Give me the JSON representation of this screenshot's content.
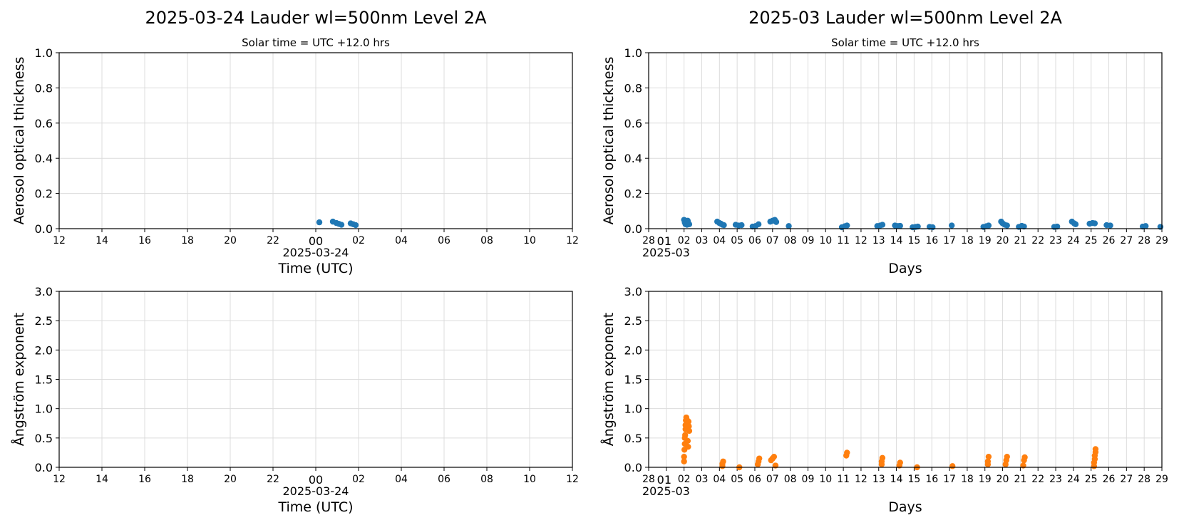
{
  "chart_data": [
    {
      "id": "daily-aod",
      "type": "scatter",
      "title": "2025-03-24  Lauder  wl=500nm  Level 2A",
      "subtitle": "Solar time = UTC +12.0 hrs",
      "xlabel": "Time (UTC)",
      "ylabel": "Aerosol optical thickness",
      "x_tick_labels": [
        "12",
        "14",
        "16",
        "18",
        "20",
        "22",
        "00",
        "02",
        "04",
        "06",
        "08",
        "10",
        "12"
      ],
      "x_date_label": "2025-03-24",
      "xlim": [
        "2025-03-23 12:00",
        "2025-03-24 12:00"
      ],
      "ylim": [
        0,
        1.0
      ],
      "y_ticks": [
        "0.0",
        "0.2",
        "0.4",
        "0.6",
        "0.8",
        "1.0"
      ],
      "grid": true,
      "color": "#1f77b4",
      "points": [
        [
          "2025-03-24 00:10",
          0.036
        ],
        [
          "2025-03-24 00:48",
          0.04
        ],
        [
          "2025-03-24 00:58",
          0.032
        ],
        [
          "2025-03-24 01:05",
          0.027
        ],
        [
          "2025-03-24 01:12",
          0.022
        ],
        [
          "2025-03-24 01:38",
          0.03
        ],
        [
          "2025-03-24 01:45",
          0.025
        ],
        [
          "2025-03-24 01:52",
          0.02
        ]
      ]
    },
    {
      "id": "monthly-aod",
      "type": "scatter",
      "title": "2025-03  Lauder  wl=500nm  Level 2A",
      "subtitle": "Solar time = UTC +12.0 hrs",
      "xlabel": "Days",
      "ylabel": "Aerosol optical thickness",
      "x_tick_labels": [
        "28",
        "01",
        "02",
        "03",
        "04",
        "05",
        "06",
        "07",
        "08",
        "09",
        "10",
        "11",
        "12",
        "13",
        "14",
        "15",
        "16",
        "17",
        "18",
        "19",
        "20",
        "21",
        "22",
        "23",
        "24",
        "25",
        "26",
        "27",
        "28",
        "29"
      ],
      "x_date_label": "2025-03",
      "xlim": [
        "2025-02-28",
        "2025-03-29"
      ],
      "ylim": [
        0,
        1.0
      ],
      "y_ticks": [
        "0.0",
        "0.2",
        "0.4",
        "0.6",
        "0.8",
        "1.0"
      ],
      "grid": true,
      "color": "#1f77b4",
      "points": [
        [
          "2025-03-02 00:00",
          0.05
        ],
        [
          "2025-03-02 01:00",
          0.035
        ],
        [
          "2025-03-02 02:00",
          0.025
        ],
        [
          "2025-03-02 03:00",
          0.03
        ],
        [
          "2025-03-02 04:00",
          0.022
        ],
        [
          "2025-03-02 05:00",
          0.045
        ],
        [
          "2025-03-02 06:00",
          0.03
        ],
        [
          "2025-03-02 07:00",
          0.025
        ],
        [
          "2025-03-03 21:00",
          0.04
        ],
        [
          "2025-03-04 00:00",
          0.032
        ],
        [
          "2025-03-04 02:00",
          0.028
        ],
        [
          "2025-03-04 04:00",
          0.022
        ],
        [
          "2025-03-04 06:00",
          0.02
        ],
        [
          "2025-03-04 22:00",
          0.022
        ],
        [
          "2025-03-05 02:00",
          0.018
        ],
        [
          "2025-03-05 06:00",
          0.02
        ],
        [
          "2025-03-05 21:00",
          0.012
        ],
        [
          "2025-03-06 01:00",
          0.015
        ],
        [
          "2025-03-06 05:00",
          0.025
        ],
        [
          "2025-03-06 21:00",
          0.04
        ],
        [
          "2025-03-07 00:00",
          0.045
        ],
        [
          "2025-03-07 03:00",
          0.05
        ],
        [
          "2025-03-07 05:00",
          0.038
        ],
        [
          "2025-03-07 22:00",
          0.015
        ],
        [
          "2025-03-10 22:00",
          0.008
        ],
        [
          "2025-03-11 02:00",
          0.014
        ],
        [
          "2025-03-11 05:00",
          0.018
        ],
        [
          "2025-03-12 22:00",
          0.015
        ],
        [
          "2025-03-13 02:00",
          0.018
        ],
        [
          "2025-03-13 05:00",
          0.022
        ],
        [
          "2025-03-13 22:00",
          0.018
        ],
        [
          "2025-03-14 02:00",
          0.015
        ],
        [
          "2025-03-14 05:00",
          0.016
        ],
        [
          "2025-03-14 22:00",
          0.008
        ],
        [
          "2025-03-15 02:00",
          0.01
        ],
        [
          "2025-03-15 05:00",
          0.012
        ],
        [
          "2025-03-15 21:00",
          0.01
        ],
        [
          "2025-03-16 01:00",
          0.008
        ],
        [
          "2025-03-17 03:00",
          0.018
        ],
        [
          "2025-03-18 22:00",
          0.01
        ],
        [
          "2025-03-19 02:00",
          0.014
        ],
        [
          "2025-03-19 05:00",
          0.018
        ],
        [
          "2025-03-19 22:00",
          0.04
        ],
        [
          "2025-03-20 00:00",
          0.03
        ],
        [
          "2025-03-20 03:00",
          0.022
        ],
        [
          "2025-03-20 06:00",
          0.018
        ],
        [
          "2025-03-20 22:00",
          0.01
        ],
        [
          "2025-03-21 02:00",
          0.016
        ],
        [
          "2025-03-21 05:00",
          0.012
        ],
        [
          "2025-03-22 22:00",
          0.01
        ],
        [
          "2025-03-23 02:00",
          0.012
        ],
        [
          "2025-03-23 22:00",
          0.04
        ],
        [
          "2025-03-24 01:00",
          0.03
        ],
        [
          "2025-03-24 03:00",
          0.025
        ],
        [
          "2025-03-24 22:00",
          0.028
        ],
        [
          "2025-03-25 02:00",
          0.032
        ],
        [
          "2025-03-25 05:00",
          0.03
        ],
        [
          "2025-03-25 21:00",
          0.02
        ],
        [
          "2025-03-26 02:00",
          0.018
        ],
        [
          "2025-03-27 22:00",
          0.012
        ],
        [
          "2025-03-28 02:00",
          0.015
        ],
        [
          "2025-03-28 22:00",
          0.01
        ]
      ]
    },
    {
      "id": "daily-angstrom",
      "type": "scatter",
      "xlabel": "Time (UTC)",
      "ylabel": "Ångström exponent",
      "x_tick_labels": [
        "12",
        "14",
        "16",
        "18",
        "20",
        "22",
        "00",
        "02",
        "04",
        "06",
        "08",
        "10",
        "12"
      ],
      "x_date_label": "2025-03-24",
      "xlim": [
        "2025-03-23 12:00",
        "2025-03-24 12:00"
      ],
      "ylim": [
        0,
        3.0
      ],
      "y_ticks": [
        "0.0",
        "0.5",
        "1.0",
        "1.5",
        "2.0",
        "2.5",
        "3.0"
      ],
      "grid": true,
      "color": "#ff7f0e",
      "points": []
    },
    {
      "id": "monthly-angstrom",
      "type": "scatter",
      "xlabel": "Days",
      "ylabel": "Ångström exponent",
      "x_tick_labels": [
        "28",
        "01",
        "02",
        "03",
        "04",
        "05",
        "06",
        "07",
        "08",
        "09",
        "10",
        "11",
        "12",
        "13",
        "14",
        "15",
        "16",
        "17",
        "18",
        "19",
        "20",
        "21",
        "22",
        "23",
        "24",
        "25",
        "26",
        "27",
        "28",
        "29"
      ],
      "x_date_label": "2025-03",
      "xlim": [
        "2025-02-28",
        "2025-03-29"
      ],
      "ylim": [
        0,
        3.0
      ],
      "y_ticks": [
        "0.0",
        "0.5",
        "1.0",
        "1.5",
        "2.0",
        "2.5",
        "3.0"
      ],
      "grid": true,
      "color": "#ff7f0e",
      "points": [
        [
          "2025-03-02 00:00",
          0.1
        ],
        [
          "2025-03-02 00:00",
          0.18
        ],
        [
          "2025-03-02 00:30",
          0.3
        ],
        [
          "2025-03-02 01:00",
          0.4
        ],
        [
          "2025-03-02 01:00",
          0.5
        ],
        [
          "2025-03-02 01:30",
          0.55
        ],
        [
          "2025-03-02 02:00",
          0.65
        ],
        [
          "2025-03-02 02:00",
          0.72
        ],
        [
          "2025-03-02 02:30",
          0.8
        ],
        [
          "2025-03-02 03:00",
          0.85
        ],
        [
          "2025-03-02 03:30",
          0.82
        ],
        [
          "2025-03-02 04:00",
          0.75
        ],
        [
          "2025-03-02 04:30",
          0.68
        ],
        [
          "2025-03-02 05:00",
          0.45
        ],
        [
          "2025-03-02 05:30",
          0.35
        ],
        [
          "2025-03-02 06:00",
          0.78
        ],
        [
          "2025-03-02 06:30",
          0.7
        ],
        [
          "2025-03-02 07:00",
          0.62
        ],
        [
          "2025-03-04 04:00",
          0.02
        ],
        [
          "2025-03-04 04:00",
          0.06
        ],
        [
          "2025-03-04 05:00",
          0.1
        ],
        [
          "2025-03-05 03:00",
          0.0
        ],
        [
          "2025-03-06 04:00",
          0.05
        ],
        [
          "2025-03-06 05:00",
          0.1
        ],
        [
          "2025-03-06 06:00",
          0.15
        ],
        [
          "2025-03-06 22:00",
          0.12
        ],
        [
          "2025-03-07 00:00",
          0.15
        ],
        [
          "2025-03-07 02:00",
          0.18
        ],
        [
          "2025-03-07 04:00",
          0.03
        ],
        [
          "2025-03-11 04:00",
          0.2
        ],
        [
          "2025-03-11 05:00",
          0.25
        ],
        [
          "2025-03-13 04:00",
          0.05
        ],
        [
          "2025-03-13 04:00",
          0.1
        ],
        [
          "2025-03-13 05:00",
          0.16
        ],
        [
          "2025-03-14 04:00",
          0.03
        ],
        [
          "2025-03-14 05:00",
          0.08
        ],
        [
          "2025-03-15 04:00",
          0.0
        ],
        [
          "2025-03-17 04:00",
          0.02
        ],
        [
          "2025-03-19 04:00",
          0.05
        ],
        [
          "2025-03-19 04:00",
          0.1
        ],
        [
          "2025-03-19 05:00",
          0.18
        ],
        [
          "2025-03-20 04:00",
          0.05
        ],
        [
          "2025-03-20 05:00",
          0.12
        ],
        [
          "2025-03-20 06:00",
          0.18
        ],
        [
          "2025-03-21 04:00",
          0.03
        ],
        [
          "2025-03-21 05:00",
          0.12
        ],
        [
          "2025-03-21 06:00",
          0.17
        ],
        [
          "2025-03-25 04:00",
          0.02
        ],
        [
          "2025-03-25 04:00",
          0.08
        ],
        [
          "2025-03-25 05:00",
          0.14
        ],
        [
          "2025-03-25 05:00",
          0.2
        ],
        [
          "2025-03-25 06:00",
          0.26
        ],
        [
          "2025-03-25 06:00",
          0.31
        ]
      ]
    }
  ]
}
